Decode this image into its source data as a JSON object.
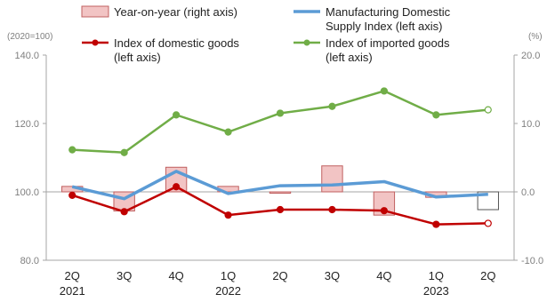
{
  "chart_data": {
    "type": "bar+line",
    "categories": [
      "2Q",
      "3Q",
      "4Q",
      "1Q",
      "2Q",
      "3Q",
      "4Q",
      "1Q",
      "2Q"
    ],
    "year_labels": [
      "2021",
      "",
      "",
      "2022",
      "",
      "",
      "",
      "2023",
      ""
    ],
    "left_axis": {
      "unit": "(2020=100)",
      "ylim": [
        80,
        140
      ],
      "ticks": [
        "80.0",
        "100.0",
        "120.0",
        "140.0"
      ]
    },
    "right_axis": {
      "unit": "(%)",
      "ylim": [
        -10,
        20
      ],
      "ticks": [
        "-10.0",
        "0.0",
        "10.0",
        "20.0"
      ]
    },
    "bar_series": {
      "name": "Year-on-year (right axis)",
      "axis": "right",
      "values": [
        0.8,
        -2.8,
        3.6,
        0.8,
        -0.2,
        3.8,
        -3.4,
        -0.8,
        -2.6
      ],
      "color": "#f2c4c4",
      "edge": "#c06060",
      "last_fill": "#ffffff",
      "last_edge": "#555555"
    },
    "series": [
      {
        "name": "Manufacturing Domestic Supply Index (left axis)",
        "axis": "left",
        "values": [
          101.5,
          98.0,
          106.0,
          99.5,
          101.8,
          102.0,
          103.0,
          98.5,
          99.3
        ],
        "color": "#5b9bd5"
      },
      {
        "name": "Index of domestic goods (left axis)",
        "axis": "left",
        "values": [
          99.0,
          94.2,
          101.5,
          93.2,
          94.8,
          94.8,
          94.5,
          90.5,
          90.8
        ],
        "color": "#c00000"
      },
      {
        "name": "Index of imported goods (left axis)",
        "axis": "left",
        "values": [
          112.3,
          111.5,
          122.5,
          117.5,
          123.0,
          125.0,
          129.5,
          122.5,
          124.0
        ],
        "color": "#70ad47"
      }
    ],
    "legend": {
      "items": [
        {
          "key": "bar",
          "line1": "Year-on-year (right axis)",
          "line2": ""
        },
        {
          "key": "mfg",
          "line1": "Manufacturing Domestic",
          "line2": "Supply Index (left axis)"
        },
        {
          "key": "dom",
          "line1": "Index of domestic goods",
          "line2": "(left axis)"
        },
        {
          "key": "imp",
          "line1": "Index of imported goods",
          "line2": "(left axis)"
        }
      ],
      "position": "top"
    },
    "grid": false,
    "title": "",
    "xlabel": "",
    "ylabel": ""
  }
}
